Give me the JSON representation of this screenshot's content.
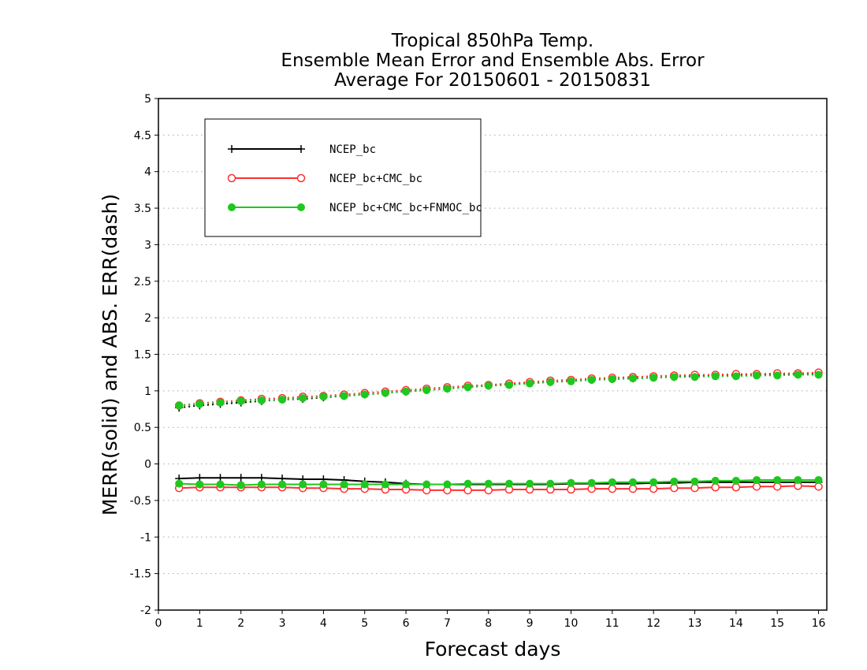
{
  "chart_data": {
    "type": "line",
    "title": [
      "Tropical 850hPa Temp.",
      "Ensemble Mean Error and Ensemble Abs. Error",
      "Average For 20150601 - 20150831"
    ],
    "xlabel": "Forecast days",
    "ylabel": "MERR(solid) and ABS. ERR(dash)",
    "xlim": [
      0,
      16.2
    ],
    "ylim": [
      -2,
      5
    ],
    "xticks": [
      0,
      1,
      2,
      3,
      4,
      5,
      6,
      7,
      8,
      9,
      10,
      11,
      12,
      13,
      14,
      15,
      16
    ],
    "yticks": [
      -2,
      -1.5,
      -1,
      -0.5,
      0,
      0.5,
      1,
      1.5,
      2,
      2.5,
      3,
      3.5,
      4,
      4.5,
      5
    ],
    "ytick_labels": [
      "-2",
      "-1.5",
      "-1",
      "-0.5",
      "0",
      "0.5",
      "1",
      "1.5",
      "2",
      "2.5",
      "3",
      "3.5",
      "4",
      "4.5",
      "5"
    ],
    "grid": true,
    "legend_position": "top-left",
    "x": [
      0.5,
      1,
      1.5,
      2,
      2.5,
      3,
      3.5,
      4,
      4.5,
      5,
      5.5,
      6,
      6.5,
      7,
      7.5,
      8,
      8.5,
      9,
      9.5,
      10,
      10.5,
      11,
      11.5,
      12,
      12.5,
      13,
      13.5,
      14,
      14.5,
      15,
      15.5,
      16
    ],
    "series": [
      {
        "name": "NCEP_bc",
        "color": "#000000",
        "marker": "plus",
        "mean_error": [
          -0.2,
          -0.19,
          -0.19,
          -0.19,
          -0.19,
          -0.2,
          -0.21,
          -0.21,
          -0.22,
          -0.24,
          -0.25,
          -0.27,
          -0.28,
          -0.28,
          -0.28,
          -0.28,
          -0.28,
          -0.28,
          -0.28,
          -0.27,
          -0.27,
          -0.27,
          -0.27,
          -0.26,
          -0.26,
          -0.25,
          -0.25,
          -0.25,
          -0.25,
          -0.25,
          -0.25,
          -0.25
        ],
        "abs_error": [
          0.77,
          0.8,
          0.82,
          0.84,
          0.86,
          0.88,
          0.89,
          0.91,
          0.93,
          0.95,
          0.97,
          0.99,
          1.01,
          1.03,
          1.05,
          1.07,
          1.09,
          1.11,
          1.12,
          1.14,
          1.15,
          1.16,
          1.17,
          1.18,
          1.19,
          1.2,
          1.21,
          1.21,
          1.22,
          1.22,
          1.23,
          1.23
        ]
      },
      {
        "name": "NCEP_bc+CMC_bc",
        "color": "#ff3030",
        "marker": "open-circle",
        "mean_error": [
          -0.33,
          -0.32,
          -0.32,
          -0.32,
          -0.32,
          -0.32,
          -0.33,
          -0.33,
          -0.34,
          -0.34,
          -0.35,
          -0.35,
          -0.36,
          -0.36,
          -0.36,
          -0.36,
          -0.35,
          -0.35,
          -0.35,
          -0.35,
          -0.34,
          -0.34,
          -0.34,
          -0.34,
          -0.33,
          -0.33,
          -0.32,
          -0.32,
          -0.31,
          -0.31,
          -0.3,
          -0.31
        ],
        "abs_error": [
          0.8,
          0.83,
          0.85,
          0.87,
          0.89,
          0.9,
          0.92,
          0.93,
          0.95,
          0.97,
          0.99,
          1.01,
          1.03,
          1.05,
          1.07,
          1.08,
          1.1,
          1.12,
          1.14,
          1.15,
          1.17,
          1.18,
          1.19,
          1.2,
          1.21,
          1.22,
          1.22,
          1.23,
          1.23,
          1.24,
          1.24,
          1.25
        ]
      },
      {
        "name": "NCEP_bc+CMC_bc+FNMOC_bc",
        "color": "#1ec81e",
        "marker": "filled-circle",
        "mean_error": [
          -0.27,
          -0.28,
          -0.28,
          -0.29,
          -0.28,
          -0.28,
          -0.28,
          -0.28,
          -0.28,
          -0.28,
          -0.28,
          -0.28,
          -0.28,
          -0.28,
          -0.27,
          -0.27,
          -0.27,
          -0.27,
          -0.27,
          -0.26,
          -0.26,
          -0.25,
          -0.25,
          -0.25,
          -0.24,
          -0.24,
          -0.23,
          -0.23,
          -0.22,
          -0.22,
          -0.22,
          -0.22
        ],
        "abs_error": [
          0.8,
          0.82,
          0.84,
          0.86,
          0.87,
          0.88,
          0.9,
          0.92,
          0.93,
          0.95,
          0.97,
          0.99,
          1.01,
          1.03,
          1.05,
          1.07,
          1.08,
          1.1,
          1.12,
          1.13,
          1.15,
          1.16,
          1.17,
          1.18,
          1.19,
          1.19,
          1.2,
          1.2,
          1.21,
          1.21,
          1.22,
          1.22
        ]
      }
    ]
  }
}
